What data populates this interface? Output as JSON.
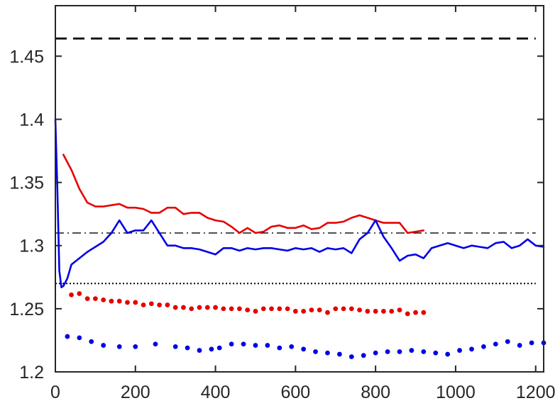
{
  "chart_data": {
    "type": "line",
    "title": "",
    "xlabel": "",
    "ylabel": "",
    "xlim": [
      0,
      1220
    ],
    "ylim": [
      1.2,
      1.49
    ],
    "xticks": [
      0,
      200,
      400,
      600,
      800,
      1000,
      1200
    ],
    "yticks": [
      1.2,
      1.25,
      1.3,
      1.35,
      1.4,
      1.45
    ],
    "xtick_labels": [
      "0",
      "200",
      "400",
      "600",
      "800",
      "1000",
      "1200"
    ],
    "ytick_labels": [
      "1.2",
      "1.25",
      "1.3",
      "1.35",
      "1.4",
      "1.45"
    ],
    "grid": false,
    "reference_lines": [
      {
        "style": "dashed",
        "y": 1.464,
        "x": [
          0,
          1200
        ],
        "color": "#000000"
      },
      {
        "style": "dashdot",
        "y": 1.31,
        "x": [
          0,
          1200
        ],
        "color": "#000000"
      },
      {
        "style": "dotted",
        "y": 1.27,
        "x": [
          0,
          1200
        ],
        "color": "#000000"
      }
    ],
    "series": [
      {
        "style": "line",
        "color": "#e60000",
        "x": [
          20,
          40,
          60,
          80,
          100,
          120,
          140,
          160,
          180,
          200,
          220,
          240,
          260,
          280,
          300,
          320,
          340,
          360,
          380,
          400,
          420,
          440,
          460,
          480,
          500,
          520,
          540,
          560,
          580,
          600,
          620,
          640,
          660,
          680,
          700,
          720,
          740,
          760,
          780,
          800,
          820,
          840,
          860,
          880,
          900,
          920
        ],
        "y": [
          1.372,
          1.36,
          1.345,
          1.334,
          1.331,
          1.331,
          1.332,
          1.333,
          1.33,
          1.33,
          1.329,
          1.326,
          1.326,
          1.33,
          1.33,
          1.325,
          1.326,
          1.326,
          1.322,
          1.32,
          1.319,
          1.315,
          1.31,
          1.314,
          1.31,
          1.311,
          1.315,
          1.316,
          1.314,
          1.314,
          1.316,
          1.313,
          1.314,
          1.318,
          1.318,
          1.319,
          1.322,
          1.324,
          1.322,
          1.32,
          1.318,
          1.318,
          1.318,
          1.31,
          1.311,
          1.312
        ]
      },
      {
        "style": "line",
        "color": "#0000e6",
        "x": [
          0,
          5,
          10,
          15,
          20,
          30,
          40,
          60,
          80,
          100,
          120,
          140,
          160,
          180,
          200,
          220,
          240,
          260,
          280,
          300,
          320,
          340,
          360,
          380,
          400,
          420,
          440,
          460,
          480,
          500,
          520,
          540,
          560,
          580,
          600,
          620,
          640,
          660,
          680,
          700,
          720,
          740,
          760,
          780,
          800,
          820,
          840,
          860,
          880,
          900,
          920,
          940,
          960,
          980,
          1000,
          1020,
          1040,
          1060,
          1080,
          1100,
          1120,
          1140,
          1160,
          1180,
          1200,
          1220
        ],
        "y": [
          1.4,
          1.345,
          1.28,
          1.267,
          1.268,
          1.274,
          1.285,
          1.29,
          1.295,
          1.299,
          1.303,
          1.31,
          1.32,
          1.31,
          1.312,
          1.312,
          1.32,
          1.31,
          1.3,
          1.3,
          1.298,
          1.298,
          1.297,
          1.295,
          1.293,
          1.298,
          1.298,
          1.296,
          1.298,
          1.297,
          1.298,
          1.298,
          1.297,
          1.296,
          1.298,
          1.297,
          1.298,
          1.295,
          1.298,
          1.297,
          1.298,
          1.294,
          1.305,
          1.31,
          1.32,
          1.307,
          1.298,
          1.288,
          1.292,
          1.293,
          1.29,
          1.298,
          1.3,
          1.302,
          1.3,
          1.298,
          1.3,
          1.299,
          1.298,
          1.302,
          1.303,
          1.298,
          1.3,
          1.305,
          1.3,
          1.299
        ]
      },
      {
        "style": "markers",
        "color": "#e60000",
        "x": [
          40,
          60,
          80,
          100,
          120,
          140,
          160,
          180,
          200,
          220,
          240,
          260,
          280,
          300,
          320,
          340,
          360,
          380,
          400,
          420,
          440,
          460,
          480,
          500,
          520,
          540,
          560,
          580,
          600,
          620,
          640,
          660,
          680,
          700,
          720,
          740,
          760,
          780,
          800,
          820,
          840,
          860,
          880,
          900,
          920
        ],
        "y": [
          1.261,
          1.262,
          1.258,
          1.258,
          1.257,
          1.256,
          1.256,
          1.255,
          1.255,
          1.253,
          1.254,
          1.253,
          1.253,
          1.251,
          1.251,
          1.25,
          1.251,
          1.251,
          1.251,
          1.25,
          1.25,
          1.25,
          1.249,
          1.248,
          1.25,
          1.25,
          1.25,
          1.25,
          1.248,
          1.248,
          1.249,
          1.249,
          1.247,
          1.25,
          1.25,
          1.25,
          1.249,
          1.248,
          1.248,
          1.248,
          1.248,
          1.249,
          1.246,
          1.247,
          1.247
        ]
      },
      {
        "style": "markers",
        "color": "#0000e6",
        "x": [
          30,
          60,
          90,
          120,
          160,
          200,
          250,
          300,
          330,
          360,
          390,
          410,
          440,
          470,
          500,
          530,
          560,
          590,
          620,
          650,
          680,
          710,
          740,
          770,
          800,
          830,
          860,
          890,
          920,
          950,
          980,
          1010,
          1040,
          1070,
          1100,
          1130,
          1160,
          1190,
          1220
        ],
        "y": [
          1.228,
          1.227,
          1.224,
          1.221,
          1.22,
          1.22,
          1.222,
          1.22,
          1.219,
          1.217,
          1.218,
          1.219,
          1.222,
          1.222,
          1.221,
          1.221,
          1.219,
          1.22,
          1.218,
          1.216,
          1.215,
          1.214,
          1.212,
          1.213,
          1.215,
          1.216,
          1.216,
          1.217,
          1.216,
          1.215,
          1.214,
          1.217,
          1.218,
          1.22,
          1.222,
          1.224,
          1.221,
          1.223,
          1.223
        ]
      }
    ]
  }
}
